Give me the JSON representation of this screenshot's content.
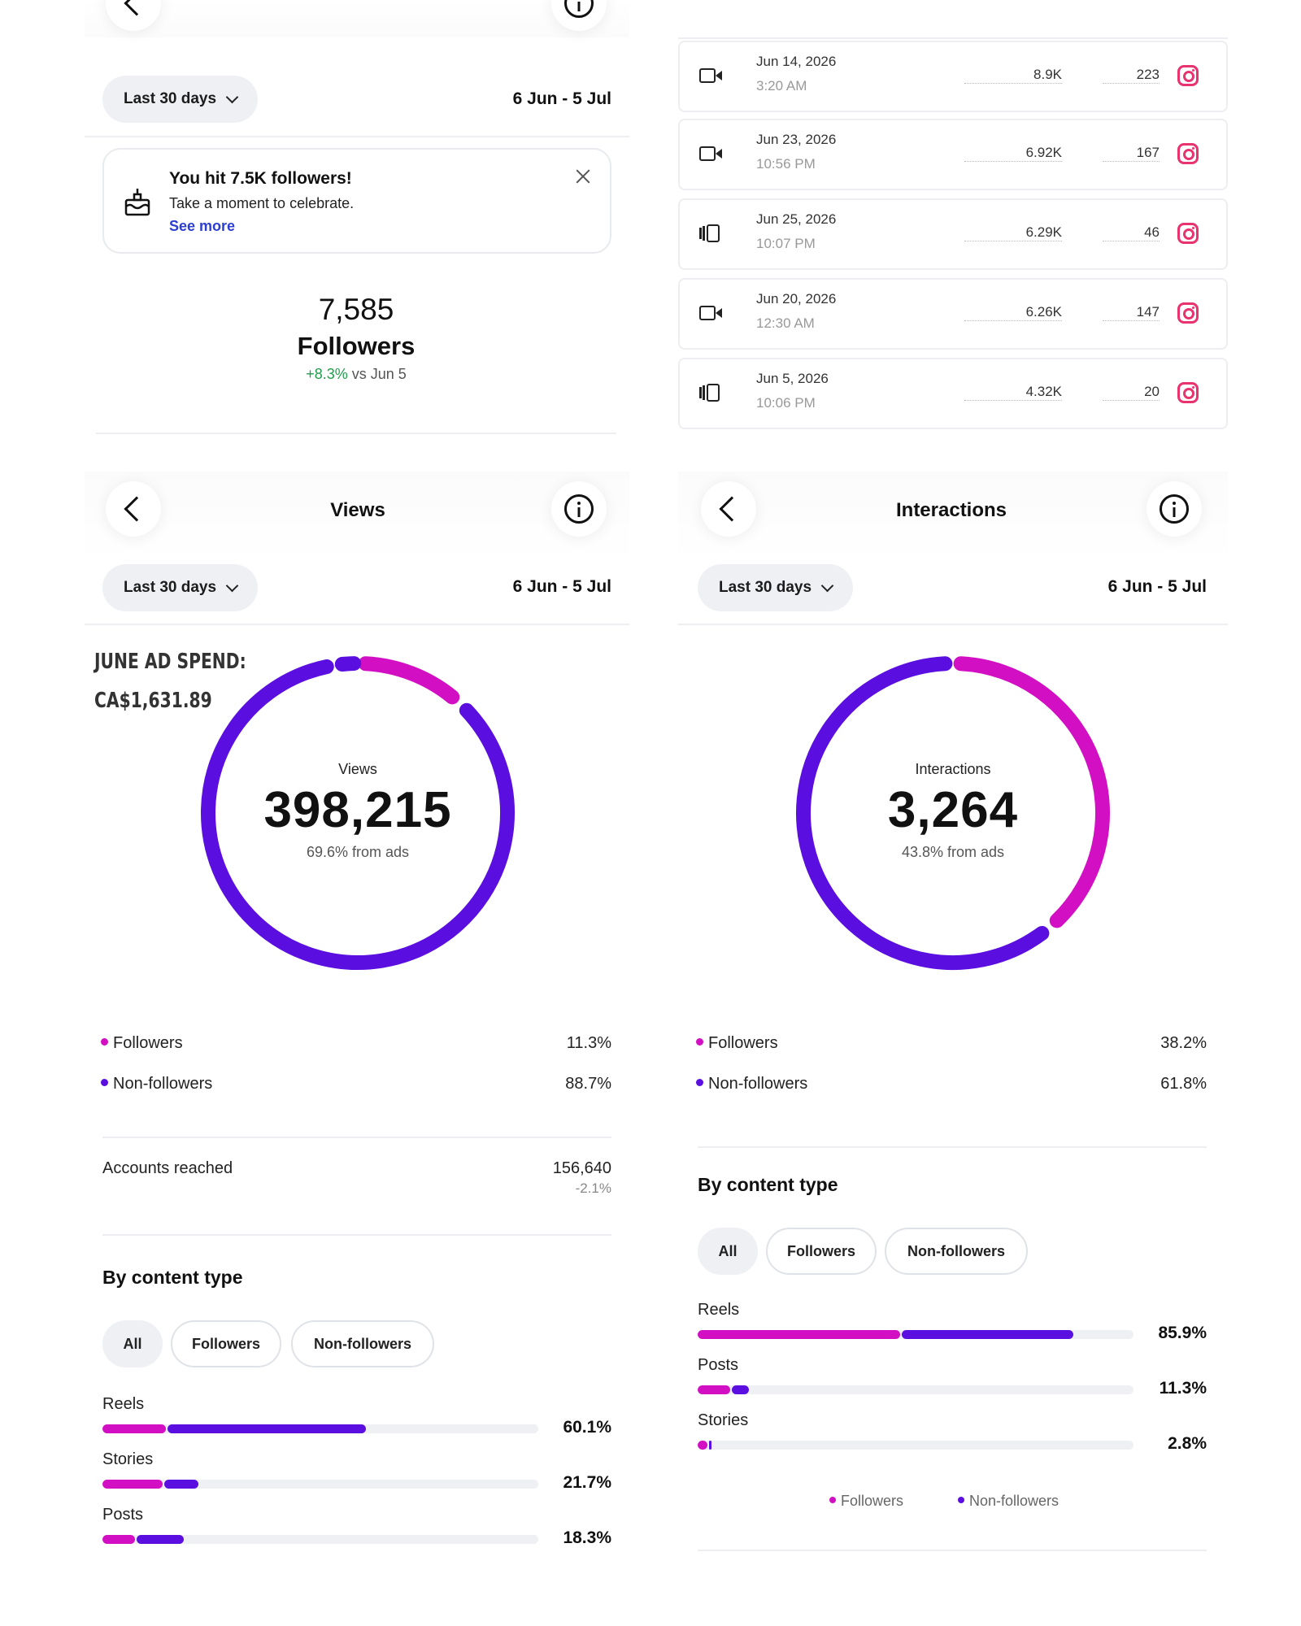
{
  "colors": {
    "followers": "#d30fc4",
    "non_followers": "#5a0fe0",
    "track": "#eef0f4"
  },
  "followers_panel": {
    "range_pill": "Last 30 days",
    "date_range": "6 Jun - 5 Jul",
    "notification": {
      "icon": "cake-icon",
      "title": "You hit 7.5K followers!",
      "subtitle": "Take a moment to celebrate.",
      "link": "See more"
    },
    "count": "7,585",
    "label": "Followers",
    "change_pos": "+8.3%",
    "change_rest": " vs Jun 5"
  },
  "content_table": {
    "rows": [
      {
        "type_icon": "video-icon",
        "date": "Jun 14, 2026",
        "time": "3:20 AM",
        "views": "8.9K",
        "interactions": "223",
        "platform_icon": "instagram-icon"
      },
      {
        "type_icon": "video-icon",
        "date": "Jun 23, 2026",
        "time": "10:56 PM",
        "views": "6.92K",
        "interactions": "167",
        "platform_icon": "instagram-icon"
      },
      {
        "type_icon": "carousel-icon",
        "date": "Jun 25, 2026",
        "time": "10:07 PM",
        "views": "6.29K",
        "interactions": "46",
        "platform_icon": "instagram-icon"
      },
      {
        "type_icon": "video-icon",
        "date": "Jun 20, 2026",
        "time": "12:30 AM",
        "views": "6.26K",
        "interactions": "147",
        "platform_icon": "instagram-icon"
      },
      {
        "type_icon": "carousel-icon",
        "date": "Jun 5, 2026",
        "time": "10:06 PM",
        "views": "4.32K",
        "interactions": "20",
        "platform_icon": "instagram-icon"
      }
    ]
  },
  "views_panel": {
    "title": "Views",
    "range_pill": "Last 30 days",
    "date_range": "6 Jun - 5 Jul",
    "ad_spend_line1": "JUNE AD SPEND:",
    "ad_spend_line2": "CA$1,631.89",
    "donut": {
      "label": "Views",
      "value": "398,215",
      "sub": "69.6% from ads",
      "followers_fraction": 0.113
    },
    "legend": [
      {
        "name": "Followers",
        "value": "11.3%"
      },
      {
        "name": "Non-followers",
        "value": "88.7%"
      }
    ],
    "accounts_reached": {
      "label": "Accounts reached",
      "value": "156,640",
      "change": "-2.1%"
    },
    "by_content_type": "By content type",
    "chips": [
      "All",
      "Followers",
      "Non-followers"
    ],
    "bars": [
      {
        "label": "Reels",
        "pct": "60.1%",
        "followers": 0.146,
        "non_followers": 0.455
      },
      {
        "label": "Stories",
        "pct": "21.7%",
        "followers": 0.138,
        "non_followers": 0.079
      },
      {
        "label": "Posts",
        "pct": "18.3%",
        "followers": 0.074,
        "non_followers": 0.109
      }
    ]
  },
  "interactions_panel": {
    "title": "Interactions",
    "range_pill": "Last 30 days",
    "date_range": "6 Jun - 5 Jul",
    "donut": {
      "label": "Interactions",
      "value": "3,264",
      "sub": "43.8% from ads",
      "followers_fraction": 0.382
    },
    "legend": [
      {
        "name": "Followers",
        "value": "38.2%"
      },
      {
        "name": "Non-followers",
        "value": "61.8%"
      }
    ],
    "by_content_type": "By content type",
    "chips": [
      "All",
      "Followers",
      "Non-followers"
    ],
    "bars": [
      {
        "label": "Reels",
        "pct": "85.9%",
        "followers": 0.465,
        "non_followers": 0.394
      },
      {
        "label": "Posts",
        "pct": "11.3%",
        "followers": 0.075,
        "non_followers": 0.038
      },
      {
        "label": "Stories",
        "pct": "2.8%",
        "followers": 0.022,
        "non_followers": 0.006
      }
    ],
    "mini_legend": [
      "Followers",
      "Non-followers"
    ]
  }
}
